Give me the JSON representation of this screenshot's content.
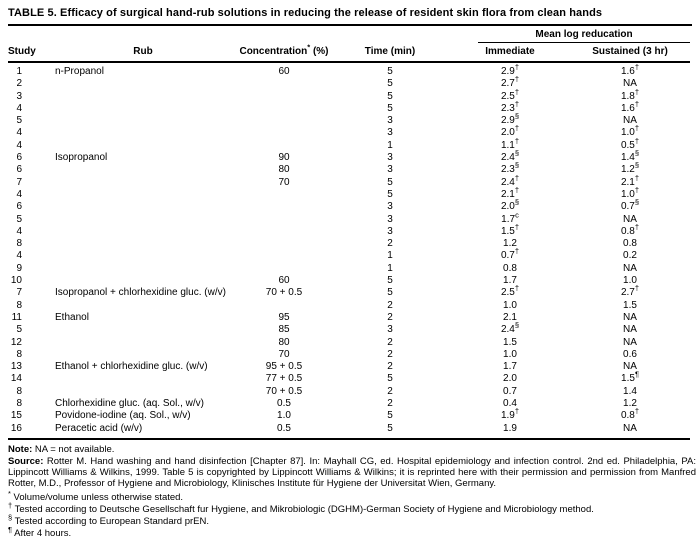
{
  "title": "TABLE 5. Efficacy of surgical hand-rub solutions in reducing the release of resident skin flora from clean hands",
  "table": {
    "group_header": "Mean log reducation",
    "columns": {
      "study": "Study",
      "rub": "Rub",
      "concentration_pre": "Concentration",
      "concentration_sup": "*",
      "concentration_post": " (%)",
      "time": "Time (min)",
      "immediate": "Immediate",
      "sustained": "Sustained (3 hr)"
    },
    "rows": [
      {
        "study": "1",
        "rub": "n-Propanol",
        "conc": "60",
        "time": "5",
        "imm": "2.9",
        "immSup": "†",
        "sus": "1.6",
        "susSup": "†"
      },
      {
        "study": "2",
        "rub": "",
        "conc": "",
        "time": "5",
        "imm": "2.7",
        "immSup": "†",
        "sus": "NA",
        "susSup": ""
      },
      {
        "study": "3",
        "rub": "",
        "conc": "",
        "time": "5",
        "imm": "2.5",
        "immSup": "†",
        "sus": "1.8",
        "susSup": "†"
      },
      {
        "study": "4",
        "rub": "",
        "conc": "",
        "time": "5",
        "imm": "2.3",
        "immSup": "†",
        "sus": "1.6",
        "susSup": "†"
      },
      {
        "study": "5",
        "rub": "",
        "conc": "",
        "time": "3",
        "imm": "2.9",
        "immSup": "§",
        "sus": "NA",
        "susSup": ""
      },
      {
        "study": "4",
        "rub": "",
        "conc": "",
        "time": "3",
        "imm": "2.0",
        "immSup": "†",
        "sus": "1.0",
        "susSup": "†"
      },
      {
        "study": "4",
        "rub": "",
        "conc": "",
        "time": "1",
        "imm": "1.1",
        "immSup": "†",
        "sus": "0.5",
        "susSup": "†"
      },
      {
        "study": "6",
        "rub": "Isopropanol",
        "conc": "90",
        "time": "3",
        "imm": "2.4",
        "immSup": "§",
        "sus": "1.4",
        "susSup": "§"
      },
      {
        "study": "6",
        "rub": "",
        "conc": "80",
        "time": "3",
        "imm": "2.3",
        "immSup": "§",
        "sus": "1.2",
        "susSup": "§"
      },
      {
        "study": "7",
        "rub": "",
        "conc": "70",
        "time": "5",
        "imm": "2.4",
        "immSup": "†",
        "sus": "2.1",
        "susSup": "†"
      },
      {
        "study": "4",
        "rub": "",
        "conc": "",
        "time": "5",
        "imm": "2.1",
        "immSup": "†",
        "sus": "1.0",
        "susSup": "†"
      },
      {
        "study": "6",
        "rub": "",
        "conc": "",
        "time": "3",
        "imm": "2.0",
        "immSup": "§",
        "sus": "0.7",
        "susSup": "§"
      },
      {
        "study": "5",
        "rub": "",
        "conc": "",
        "time": "3",
        "imm": "1.7",
        "immSup": "c",
        "sus": "NA",
        "susSup": ""
      },
      {
        "study": "4",
        "rub": "",
        "conc": "",
        "time": "3",
        "imm": "1.5",
        "immSup": "†",
        "sus": "0.8",
        "susSup": "†"
      },
      {
        "study": "8",
        "rub": "",
        "conc": "",
        "time": "2",
        "imm": "1.2",
        "immSup": "",
        "sus": "0.8",
        "susSup": ""
      },
      {
        "study": "4",
        "rub": "",
        "conc": "",
        "time": "1",
        "imm": "0.7",
        "immSup": "†",
        "sus": "0.2",
        "susSup": ""
      },
      {
        "study": "9",
        "rub": "",
        "conc": "",
        "time": "1",
        "imm": "0.8",
        "immSup": "",
        "sus": "NA",
        "susSup": ""
      },
      {
        "study": "10",
        "rub": "",
        "conc": "60",
        "time": "5",
        "imm": "1.7",
        "immSup": "",
        "sus": "1.0",
        "susSup": ""
      },
      {
        "study": "7",
        "rub": "Isopropanol + chlorhexidine gluc. (w/v)",
        "conc": "70 + 0.5",
        "time": "5",
        "imm": "2.5",
        "immSup": "†",
        "sus": "2.7",
        "susSup": "†"
      },
      {
        "study": "8",
        "rub": "",
        "conc": "",
        "time": "2",
        "imm": "1.0",
        "immSup": "",
        "sus": "1.5",
        "susSup": ""
      },
      {
        "study": "11",
        "rub": "Ethanol",
        "conc": "95",
        "time": "2",
        "imm": "2.1",
        "immSup": "",
        "sus": "NA",
        "susSup": ""
      },
      {
        "study": "5",
        "rub": "",
        "conc": "85",
        "time": "3",
        "imm": "2.4",
        "immSup": "§",
        "sus": "NA",
        "susSup": ""
      },
      {
        "study": "12",
        "rub": "",
        "conc": "80",
        "time": "2",
        "imm": "1.5",
        "immSup": "",
        "sus": "NA",
        "susSup": ""
      },
      {
        "study": "8",
        "rub": "",
        "conc": "70",
        "time": "2",
        "imm": "1.0",
        "immSup": "",
        "sus": "0.6",
        "susSup": ""
      },
      {
        "study": "13",
        "rub": "Ethanol + chlorhexidine gluc. (w/v)",
        "conc": "95 + 0.5",
        "time": "2",
        "imm": "1.7",
        "immSup": "",
        "sus": "NA",
        "susSup": ""
      },
      {
        "study": "14",
        "rub": "",
        "conc": "77 + 0.5",
        "time": "5",
        "imm": "2.0",
        "immSup": "",
        "sus": "1.5",
        "susSup": "¶"
      },
      {
        "study": "8",
        "rub": "",
        "conc": "70 + 0.5",
        "time": "2",
        "imm": "0.7",
        "immSup": "",
        "sus": "1.4",
        "susSup": ""
      },
      {
        "study": "8",
        "rub": "Chlorhexidine gluc. (aq. Sol., w/v)",
        "conc": "0.5",
        "time": "2",
        "imm": "0.4",
        "immSup": "",
        "sus": "1.2",
        "susSup": ""
      },
      {
        "study": "15",
        "rub": "Povidone-iodine (aq. Sol., w/v)",
        "conc": "1.0",
        "time": "5",
        "imm": "1.9",
        "immSup": "†",
        "sus": "0.8",
        "susSup": "†"
      },
      {
        "study": "16",
        "rub": "Peracetic acid (w/v)",
        "conc": "0.5",
        "time": "5",
        "imm": "1.9",
        "immSup": "",
        "sus": "NA",
        "susSup": ""
      }
    ]
  },
  "notes": {
    "note_label": "Note:",
    "note_text": " NA = not available.",
    "source_label": "Source:",
    "source_text": " Rotter M. Hand washing and hand disinfection [Chapter 87]. In: Mayhall CG, ed. Hospital epidemiology and infection control. 2nd ed. Philadelphia, PA: Lippincott Williams & Wilkins, 1999. Table 5 is copyrighted by Lippincott Williams & Wilkins; it is reprinted here with their permission and permission from Manfred Rotter, M.D., Professor of Hygiene and Microbiology, Klinisches Institute für Hygiene der Universitat Wien, Germany.",
    "footnotes": [
      {
        "sym": "*",
        "text": "Volume/volume unless otherwise stated."
      },
      {
        "sym": "†",
        "text": "Tested according to Deutsche Gesellschaft fur Hygiene, and Mikrobiologic (DGHM)-German Society of Hygiene and Microbiology method."
      },
      {
        "sym": "§",
        "text": "Tested according to European Standard prEN."
      },
      {
        "sym": "¶",
        "text": "After 4 hours."
      }
    ]
  }
}
